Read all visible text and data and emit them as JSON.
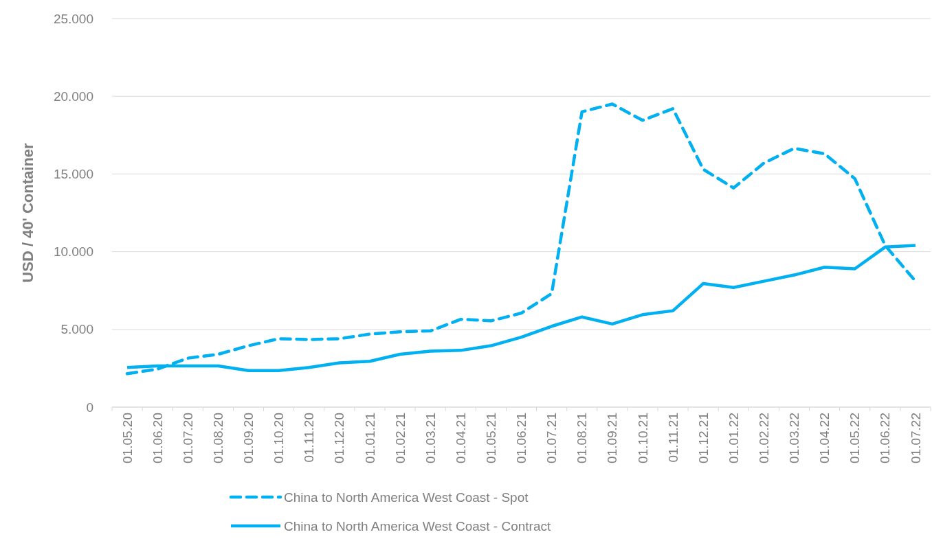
{
  "chart_data": {
    "type": "line",
    "ylabel": "USD / 40' Container",
    "categories": [
      "01.05.20",
      "01.06.20",
      "01.07.20",
      "01.08.20",
      "01.09.20",
      "01.10.20",
      "01.11.20",
      "01.12.20",
      "01.01.21",
      "01.02.21",
      "01.03.21",
      "01.04.21",
      "01.05.21",
      "01.06.21",
      "01.07.21",
      "01.08.21",
      "01.09.21",
      "01.10.21",
      "01.11.21",
      "01.12.21",
      "01.01.22",
      "01.02.22",
      "01.03.22",
      "01.04.22",
      "01.05.22",
      "01.06.22",
      "01.07.22"
    ],
    "series": [
      {
        "name": "China to North America West Coast - Spot",
        "color": "#00b0f0",
        "line_style": "dashed",
        "values": [
          2150,
          2450,
          3150,
          3400,
          3950,
          4400,
          4350,
          4400,
          4700,
          4850,
          4900,
          5650,
          5550,
          6050,
          7300,
          19000,
          19500,
          18450,
          19200,
          15300,
          14100,
          15700,
          16650,
          16300,
          14700,
          10400,
          8100
        ]
      },
      {
        "name": "China to North America West Coast - Contract",
        "color": "#00b0f0",
        "line_style": "solid",
        "values": [
          2550,
          2650,
          2650,
          2650,
          2350,
          2350,
          2550,
          2850,
          2950,
          3400,
          3600,
          3650,
          3950,
          4500,
          5200,
          5800,
          5350,
          5950,
          6200,
          7950,
          7700,
          8100,
          8500,
          9000,
          8900,
          10300,
          10400
        ]
      }
    ],
    "ylim": [
      0,
      25000
    ],
    "yticks": [
      {
        "value": 0,
        "label": "0"
      },
      {
        "value": 5000,
        "label": "5.000"
      },
      {
        "value": 10000,
        "label": "10.000"
      },
      {
        "value": 15000,
        "label": "15.000"
      },
      {
        "value": 20000,
        "label": "20.000"
      },
      {
        "value": 25000,
        "label": "25.000"
      }
    ],
    "grid": "y",
    "legend": "bottom",
    "marker": "none"
  }
}
